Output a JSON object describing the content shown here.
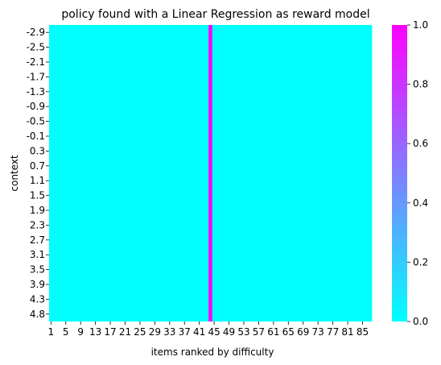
{
  "chart_data": {
    "type": "heatmap",
    "title": "policy found with a Linear Regression as reward model",
    "xlabel": "items ranked by difficulty",
    "ylabel": "context",
    "n_columns": 87,
    "n_rows": 20,
    "x_ticks": [
      "1",
      "5",
      "9",
      "13",
      "17",
      "21",
      "25",
      "29",
      "33",
      "37",
      "41",
      "45",
      "49",
      "53",
      "57",
      "61",
      "65",
      "69",
      "73",
      "77",
      "81",
      "85"
    ],
    "y_ticks": [
      "-2.9",
      "-2.5",
      "-2.1",
      "-1.7",
      "-1.3",
      "-0.9",
      "-0.5",
      "-0.1",
      "0.3",
      "0.7",
      "1.1",
      "1.5",
      "1.9",
      "2.3",
      "2.7",
      "3.1",
      "3.5",
      "3.9",
      "4.3",
      "4.8"
    ],
    "highlighted_item": 44,
    "value_highlighted": 1.0,
    "value_other": 0.0,
    "colorbar": {
      "range": [
        0.0,
        1.0
      ],
      "ticks": [
        "0.0",
        "0.2",
        "0.4",
        "0.6",
        "0.8",
        "1.0"
      ],
      "colormap": "cool",
      "low_color": "#00ffff",
      "high_color": "#ff00ff"
    }
  }
}
